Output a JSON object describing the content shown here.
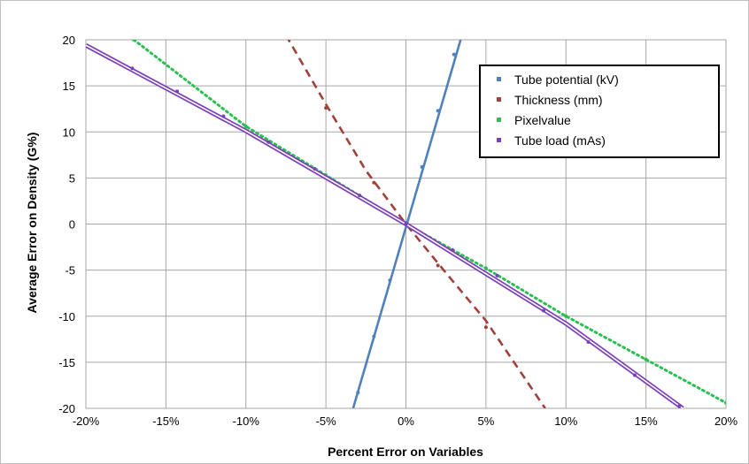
{
  "chart_data": {
    "type": "line",
    "xlabel": "Percent Error on Variables",
    "ylabel": "Average Error on Density (G%)",
    "xlim": [
      -20,
      20
    ],
    "ylim": [
      -20,
      20
    ],
    "x_ticks": [
      -20,
      -15,
      -10,
      -5,
      0,
      5,
      10,
      15,
      20
    ],
    "x_tick_labels": [
      "-20%",
      "-15%",
      "-10%",
      "-5%",
      "0%",
      "5%",
      "10%",
      "15%",
      "20%"
    ],
    "y_ticks": [
      20,
      15,
      10,
      5,
      0,
      -5,
      -10,
      -15,
      -20
    ],
    "y_tick_labels": [
      "20",
      "15",
      "10",
      "5",
      "0",
      "-5",
      "-10",
      "-15",
      "-20"
    ],
    "grid": true,
    "legend_position": "top-right",
    "series": [
      {
        "name": "Tube potential (kV)",
        "color": "#4f81bd",
        "line_style": "solid",
        "line": [
          [
            -3.3,
            -20
          ],
          [
            3.5,
            20.5
          ]
        ],
        "points": [
          [
            -3,
            -18.3
          ],
          [
            -2,
            -12.2
          ],
          [
            -1,
            -6.1
          ],
          [
            0,
            0
          ],
          [
            1,
            6.2
          ],
          [
            2,
            12.3
          ],
          [
            3,
            18.4
          ]
        ]
      },
      {
        "name": "Thickness (mm)",
        "color": "#a0413b",
        "line_style": "dashed",
        "line": [
          [
            -7.5,
            20.5
          ],
          [
            -5,
            13.0
          ],
          [
            -2.5,
            5.8
          ],
          [
            0,
            0
          ],
          [
            2.5,
            -5.3
          ],
          [
            5,
            -10.5
          ],
          [
            8.7,
            -20
          ]
        ],
        "points": [
          [
            -5,
            12.6
          ],
          [
            -2,
            4.5
          ],
          [
            0,
            0
          ],
          [
            2,
            -4.5
          ],
          [
            5,
            -11.2
          ]
        ]
      },
      {
        "name": "Pixelvalue",
        "color": "#2bbf52",
        "line_style": "dotted",
        "line": [
          [
            -17,
            20
          ],
          [
            -10,
            10.6
          ],
          [
            -5,
            5.3
          ],
          [
            0,
            0
          ],
          [
            5,
            -4.8
          ],
          [
            10,
            -10
          ],
          [
            15,
            -14.7
          ],
          [
            20,
            -19.4
          ]
        ],
        "points": [
          [
            -17,
            20
          ],
          [
            -10,
            10.6
          ],
          [
            -5,
            5.3
          ],
          [
            0,
            0
          ],
          [
            5,
            -4.8
          ],
          [
            10,
            -10
          ],
          [
            15,
            -14.7
          ],
          [
            20,
            -19.4
          ]
        ]
      },
      {
        "name": "Tube load (mAs)",
        "color": "#7b3fb8",
        "line_style": "double",
        "line": [
          [
            -20,
            19.4
          ],
          [
            -10,
            10.1
          ],
          [
            0,
            0
          ],
          [
            10,
            -10.8
          ],
          [
            17.3,
            -20
          ]
        ],
        "points": [
          [
            -17.1,
            16.9
          ],
          [
            -14.3,
            14.4
          ],
          [
            -11.4,
            11.7
          ],
          [
            -8.6,
            8.9
          ],
          [
            -5.7,
            6.0
          ],
          [
            -2.9,
            3.1
          ],
          [
            0,
            0
          ],
          [
            2.9,
            -2.8
          ],
          [
            5.7,
            -5.6
          ],
          [
            8.6,
            -9.4
          ],
          [
            11.4,
            -12.8
          ],
          [
            14.3,
            -16.4
          ],
          [
            17.1,
            -19.7
          ]
        ]
      }
    ]
  }
}
